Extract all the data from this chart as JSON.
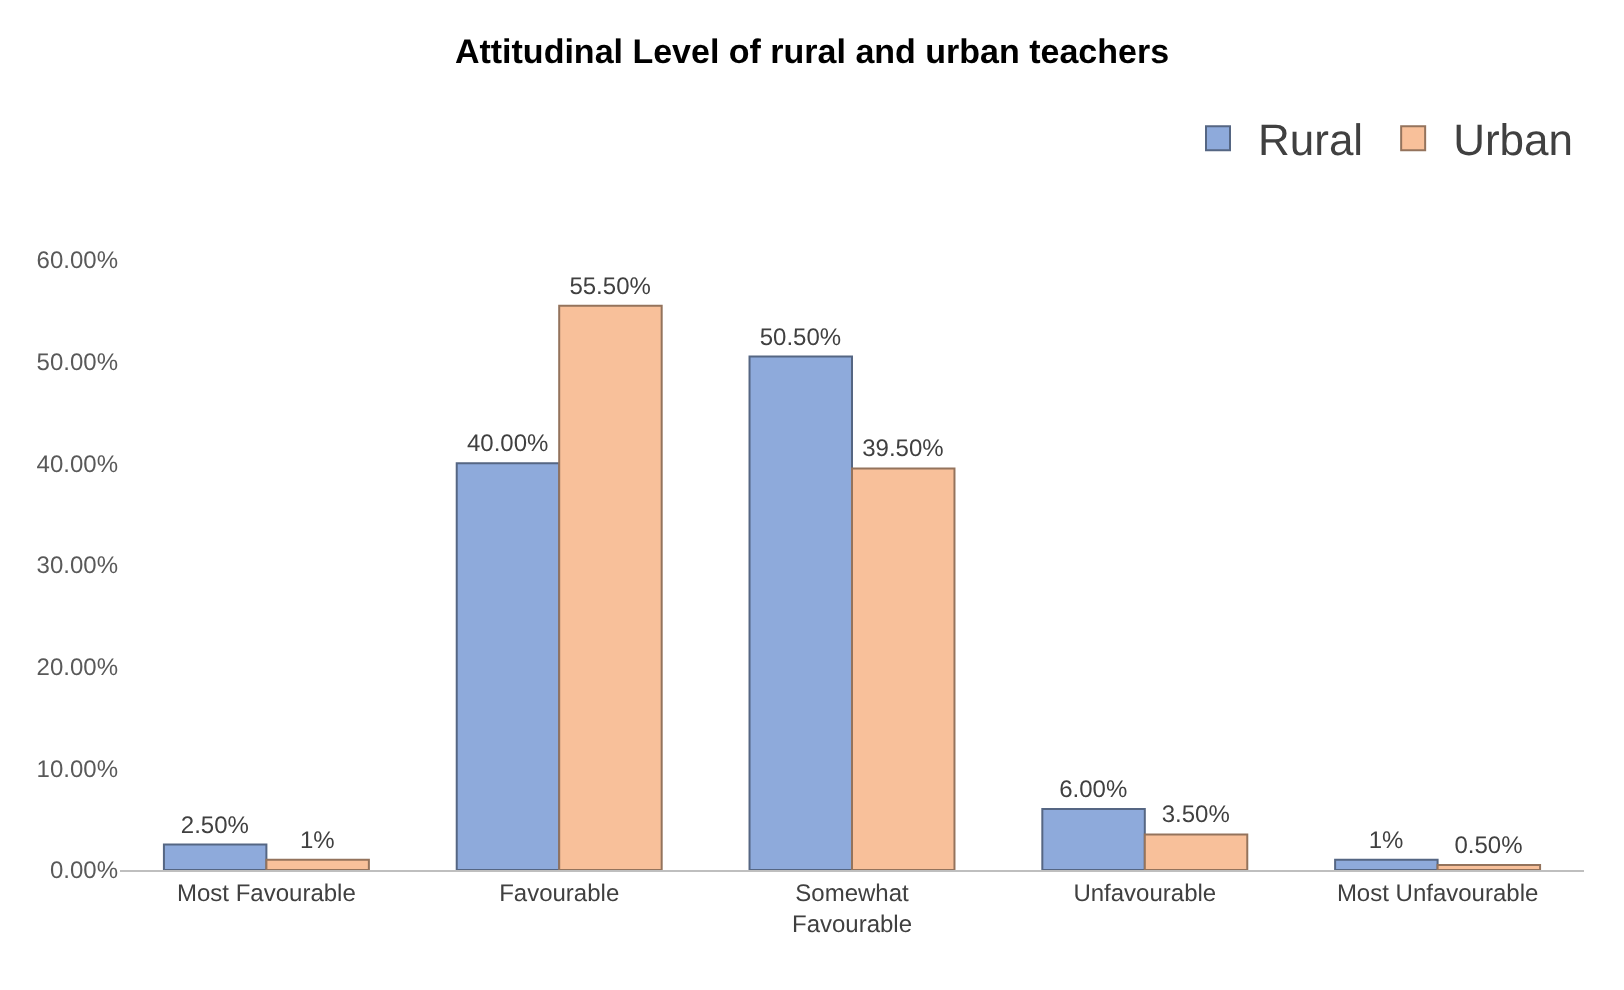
{
  "chart_data": {
    "type": "bar",
    "title": "Attitudinal Level of rural and urban teachers",
    "categories": [
      "Most Favourable",
      "Favourable",
      "Somewhat\nFavourable",
      "Unfavourable",
      "Most Unfavourable"
    ],
    "series": [
      {
        "name": "Rural",
        "color": "#8eaadb",
        "values": [
          2.5,
          40,
          50.5,
          6,
          1
        ],
        "value_labels": [
          "2.50%",
          "40.00%",
          "50.50%",
          "6.00%",
          "1%"
        ]
      },
      {
        "name": "Urban",
        "color": "#f8c09a",
        "values": [
          1,
          55.5,
          39.5,
          3.5,
          0.5
        ],
        "value_labels": [
          "1%",
          "55.50%",
          "39.50%",
          "3.50%",
          "0.50%"
        ]
      }
    ],
    "ylim": [
      0,
      60
    ],
    "yticks": [
      {
        "value": 0,
        "label": "0.00%"
      },
      {
        "value": 10,
        "label": "10.00%"
      },
      {
        "value": 20,
        "label": "20.00%"
      },
      {
        "value": 30,
        "label": "30.00%"
      },
      {
        "value": 40,
        "label": "40.00%"
      },
      {
        "value": 50,
        "label": "50.00%"
      },
      {
        "value": 60,
        "label": "60.00%"
      }
    ],
    "grid": false,
    "legend": "top right"
  }
}
